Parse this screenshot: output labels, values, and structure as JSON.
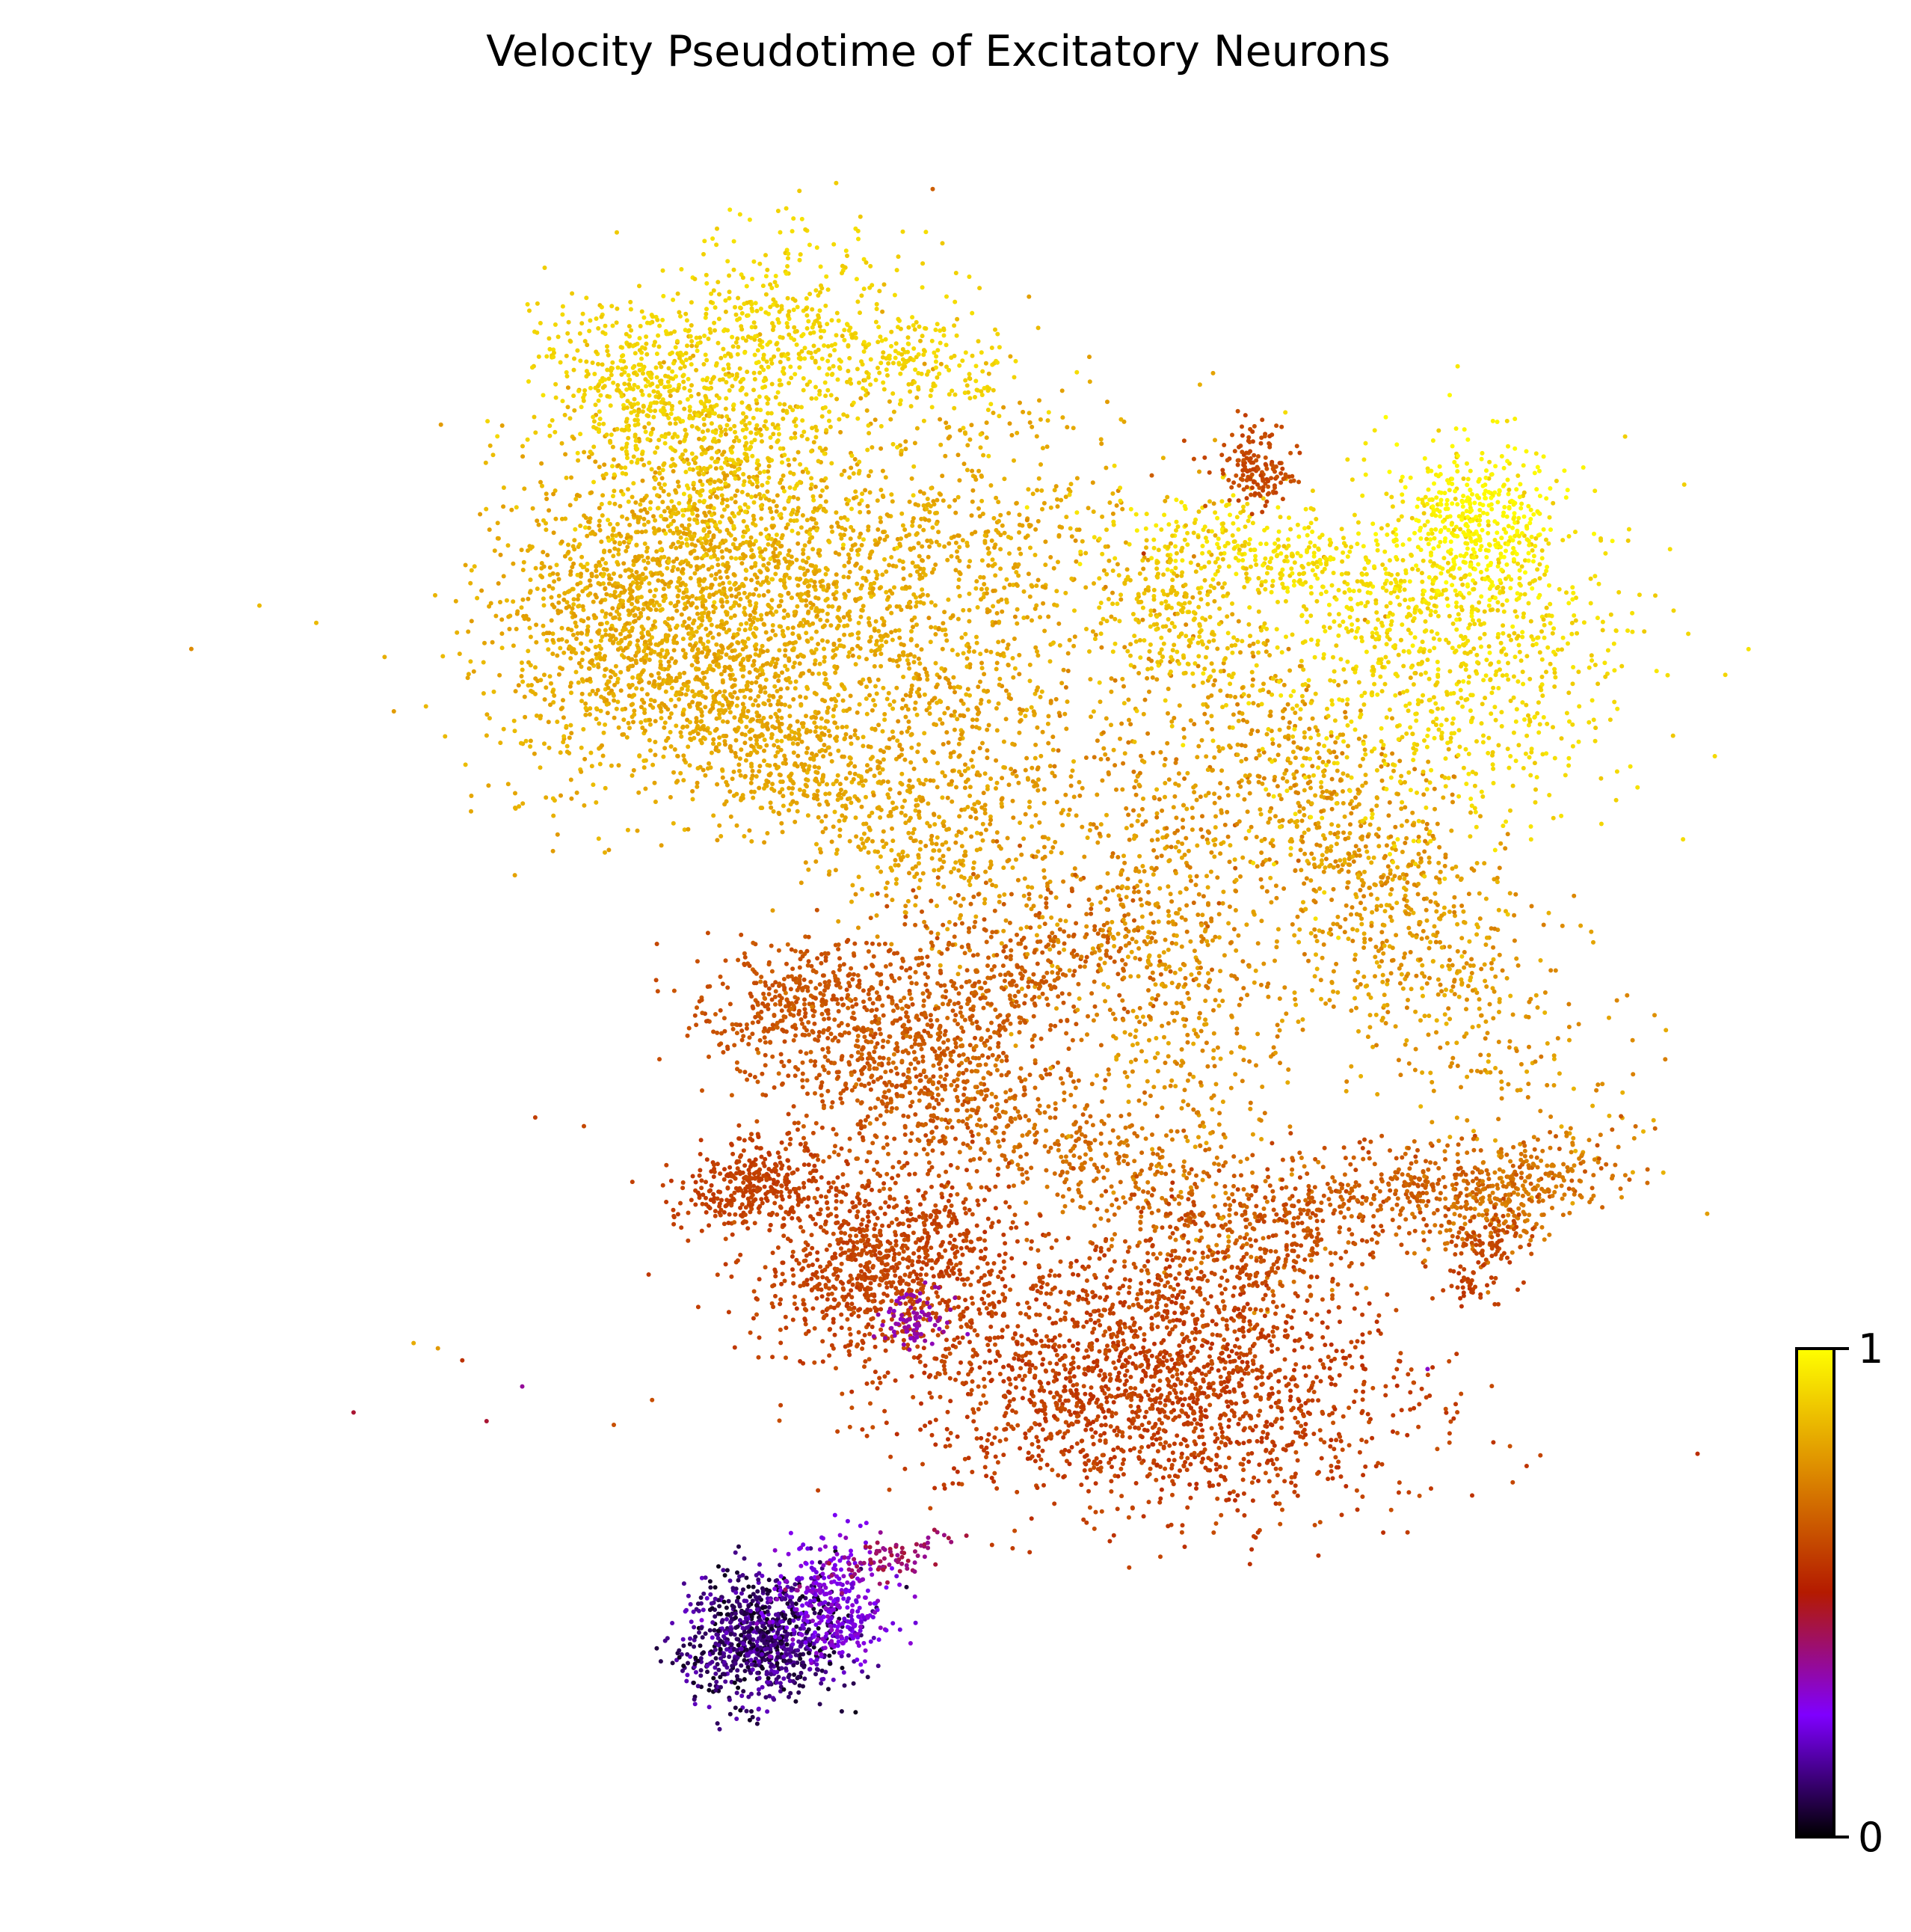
{
  "chart_data": {
    "type": "scatter",
    "title": "Velocity Pseudotime of Excitatory Neurons",
    "xlabel": "",
    "ylabel": "",
    "axes_visible": false,
    "grid": false,
    "legend": "none",
    "colorbar": {
      "placement": "right",
      "colormap": "gnuplot",
      "range": [
        0,
        1
      ],
      "ticks": [
        {
          "value": 1,
          "label": "1"
        },
        {
          "value": 0,
          "label": "0"
        }
      ],
      "stops": [
        {
          "offset": 0.0,
          "color": "#000000"
        },
        {
          "offset": 0.25,
          "color": "#7f00ff"
        },
        {
          "offset": 0.5,
          "color": "#b41a00"
        },
        {
          "offset": 0.75,
          "color": "#dd8b00"
        },
        {
          "offset": 1.0,
          "color": "#ffff00"
        }
      ]
    },
    "xlim": [
      0,
      1
    ],
    "ylim": [
      0,
      1
    ],
    "clusters": [
      {
        "cx": 0.345,
        "cy": 0.725,
        "sx": 0.055,
        "sy": 0.045,
        "rot": 0.6,
        "n": 1500,
        "t": [
          0.78,
          0.86
        ]
      },
      {
        "cx": 0.47,
        "cy": 0.72,
        "sx": 0.085,
        "sy": 0.05,
        "rot": 0.3,
        "n": 1500,
        "t": [
          0.78,
          0.85
        ]
      },
      {
        "cx": 0.38,
        "cy": 0.81,
        "sx": 0.045,
        "sy": 0.03,
        "rot": -0.1,
        "n": 500,
        "t": [
          0.86,
          0.92
        ]
      },
      {
        "cx": 0.41,
        "cy": 0.88,
        "sx": 0.05,
        "sy": 0.03,
        "rot": 0.2,
        "n": 450,
        "t": [
          0.88,
          0.94
        ]
      },
      {
        "cx": 0.33,
        "cy": 0.85,
        "sx": 0.03,
        "sy": 0.02,
        "rot": -0.5,
        "n": 250,
        "t": [
          0.88,
          0.93
        ]
      },
      {
        "cx": 0.5,
        "cy": 0.86,
        "sx": 0.035,
        "sy": 0.015,
        "rot": -0.2,
        "n": 200,
        "t": [
          0.88,
          0.93
        ]
      },
      {
        "cx": 0.43,
        "cy": 0.63,
        "sx": 0.07,
        "sy": 0.022,
        "rot": -0.55,
        "n": 700,
        "t": [
          0.78,
          0.83
        ]
      },
      {
        "cx": 0.54,
        "cy": 0.61,
        "sx": 0.035,
        "sy": 0.055,
        "rot": 0.15,
        "n": 400,
        "t": [
          0.75,
          0.82
        ]
      },
      {
        "cx": 0.5,
        "cy": 0.455,
        "sx": 0.04,
        "sy": 0.035,
        "rot": 0.3,
        "n": 600,
        "t": [
          0.6,
          0.66
        ]
      },
      {
        "cx": 0.43,
        "cy": 0.49,
        "sx": 0.03,
        "sy": 0.018,
        "rot": 0.2,
        "n": 350,
        "t": [
          0.6,
          0.65
        ]
      },
      {
        "cx": 0.56,
        "cy": 0.505,
        "sx": 0.05,
        "sy": 0.025,
        "rot": 0.3,
        "n": 400,
        "t": [
          0.62,
          0.68
        ]
      },
      {
        "cx": 0.6,
        "cy": 0.41,
        "sx": 0.07,
        "sy": 0.02,
        "rot": -0.45,
        "n": 500,
        "t": [
          0.65,
          0.72
        ]
      },
      {
        "cx": 0.66,
        "cy": 0.53,
        "sx": 0.035,
        "sy": 0.08,
        "rot": 0.25,
        "n": 700,
        "t": [
          0.7,
          0.82
        ]
      },
      {
        "cx": 0.78,
        "cy": 0.57,
        "sx": 0.09,
        "sy": 0.035,
        "rot": -0.85,
        "n": 1100,
        "t": [
          0.72,
          0.84
        ]
      },
      {
        "cx": 0.83,
        "cy": 0.69,
        "sx": 0.06,
        "sy": 0.05,
        "rot": 0.2,
        "n": 900,
        "t": [
          0.88,
          0.95
        ]
      },
      {
        "cx": 0.85,
        "cy": 0.765,
        "sx": 0.025,
        "sy": 0.025,
        "rot": 0.0,
        "n": 400,
        "t": [
          0.96,
          1.0
        ]
      },
      {
        "cx": 0.74,
        "cy": 0.745,
        "sx": 0.06,
        "sy": 0.015,
        "rot": -0.25,
        "n": 350,
        "t": [
          0.9,
          0.97
        ]
      },
      {
        "cx": 0.67,
        "cy": 0.72,
        "sx": 0.03,
        "sy": 0.025,
        "rot": 0.2,
        "n": 250,
        "t": [
          0.85,
          0.9
        ]
      },
      {
        "cx": 0.715,
        "cy": 0.8,
        "sx": 0.011,
        "sy": 0.011,
        "rot": 0.0,
        "n": 150,
        "t": [
          0.58,
          0.63
        ]
      },
      {
        "cx": 0.485,
        "cy": 0.34,
        "sx": 0.04,
        "sy": 0.025,
        "rot": 0.1,
        "n": 900,
        "t": [
          0.56,
          0.62
        ]
      },
      {
        "cx": 0.405,
        "cy": 0.385,
        "sx": 0.025,
        "sy": 0.013,
        "rot": 0.1,
        "n": 350,
        "t": [
          0.56,
          0.6
        ]
      },
      {
        "cx": 0.65,
        "cy": 0.27,
        "sx": 0.08,
        "sy": 0.035,
        "rot": -0.05,
        "n": 1800,
        "t": [
          0.54,
          0.62
        ]
      },
      {
        "cx": 0.7,
        "cy": 0.345,
        "sx": 0.06,
        "sy": 0.025,
        "rot": 0.25,
        "n": 500,
        "t": [
          0.58,
          0.64
        ]
      },
      {
        "cx": 0.82,
        "cy": 0.385,
        "sx": 0.055,
        "sy": 0.012,
        "rot": 0.1,
        "n": 300,
        "t": [
          0.62,
          0.68
        ]
      },
      {
        "cx": 0.87,
        "cy": 0.38,
        "sx": 0.03,
        "sy": 0.015,
        "rot": 0.4,
        "n": 250,
        "t": [
          0.68,
          0.74
        ]
      },
      {
        "cx": 0.86,
        "cy": 0.355,
        "sx": 0.015,
        "sy": 0.009,
        "rot": 0.4,
        "n": 80,
        "t": [
          0.58,
          0.62
        ]
      },
      {
        "cx": 0.85,
        "cy": 0.33,
        "sx": 0.01,
        "sy": 0.007,
        "rot": 0.0,
        "n": 40,
        "t": [
          0.55,
          0.6
        ]
      },
      {
        "cx": 0.505,
        "cy": 0.31,
        "sx": 0.012,
        "sy": 0.008,
        "rot": 0.0,
        "n": 80,
        "t": [
          0.3,
          0.36
        ]
      },
      {
        "cx": 0.41,
        "cy": 0.125,
        "sx": 0.025,
        "sy": 0.018,
        "rot": 0.15,
        "n": 900,
        "t": [
          0.02,
          0.2
        ]
      },
      {
        "cx": 0.455,
        "cy": 0.145,
        "sx": 0.018,
        "sy": 0.018,
        "rot": 0.0,
        "n": 300,
        "t": [
          0.2,
          0.32
        ]
      },
      {
        "cx": 0.49,
        "cy": 0.17,
        "sx": 0.02,
        "sy": 0.006,
        "rot": 0.3,
        "n": 80,
        "t": [
          0.35,
          0.45
        ]
      }
    ],
    "stray_points": [
      {
        "x": 0.515,
        "y": 0.96,
        "t": 0.65
      },
      {
        "x": 0.485,
        "y": 0.905,
        "t": 0.85
      },
      {
        "x": 0.53,
        "y": 0.885,
        "t": 0.85
      },
      {
        "x": 0.58,
        "y": 0.88,
        "t": 0.85
      },
      {
        "x": 0.65,
        "y": 0.795,
        "t": 0.65
      },
      {
        "x": 0.67,
        "y": 0.815,
        "t": 0.6
      },
      {
        "x": 0.645,
        "y": 0.75,
        "t": 0.55
      },
      {
        "x": 0.1,
        "y": 0.72,
        "t": 0.85
      },
      {
        "x": 0.135,
        "y": 0.71,
        "t": 0.85
      },
      {
        "x": 0.058,
        "y": 0.695,
        "t": 0.75
      },
      {
        "x": 0.345,
        "y": 0.525,
        "t": 0.6
      },
      {
        "x": 0.37,
        "y": 0.515,
        "t": 0.62
      },
      {
        "x": 0.27,
        "y": 0.425,
        "t": 0.58
      },
      {
        "x": 0.3,
        "y": 0.42,
        "t": 0.6
      },
      {
        "x": 0.195,
        "y": 0.295,
        "t": 0.82
      },
      {
        "x": 0.21,
        "y": 0.292,
        "t": 0.78
      },
      {
        "x": 0.225,
        "y": 0.285,
        "t": 0.55
      },
      {
        "x": 0.262,
        "y": 0.27,
        "t": 0.35
      },
      {
        "x": 0.158,
        "y": 0.255,
        "t": 0.45
      },
      {
        "x": 0.24,
        "y": 0.25,
        "t": 0.45
      },
      {
        "x": 0.82,
        "y": 0.28,
        "t": 0.3
      },
      {
        "x": 0.89,
        "y": 0.46,
        "t": 0.7
      }
    ]
  }
}
